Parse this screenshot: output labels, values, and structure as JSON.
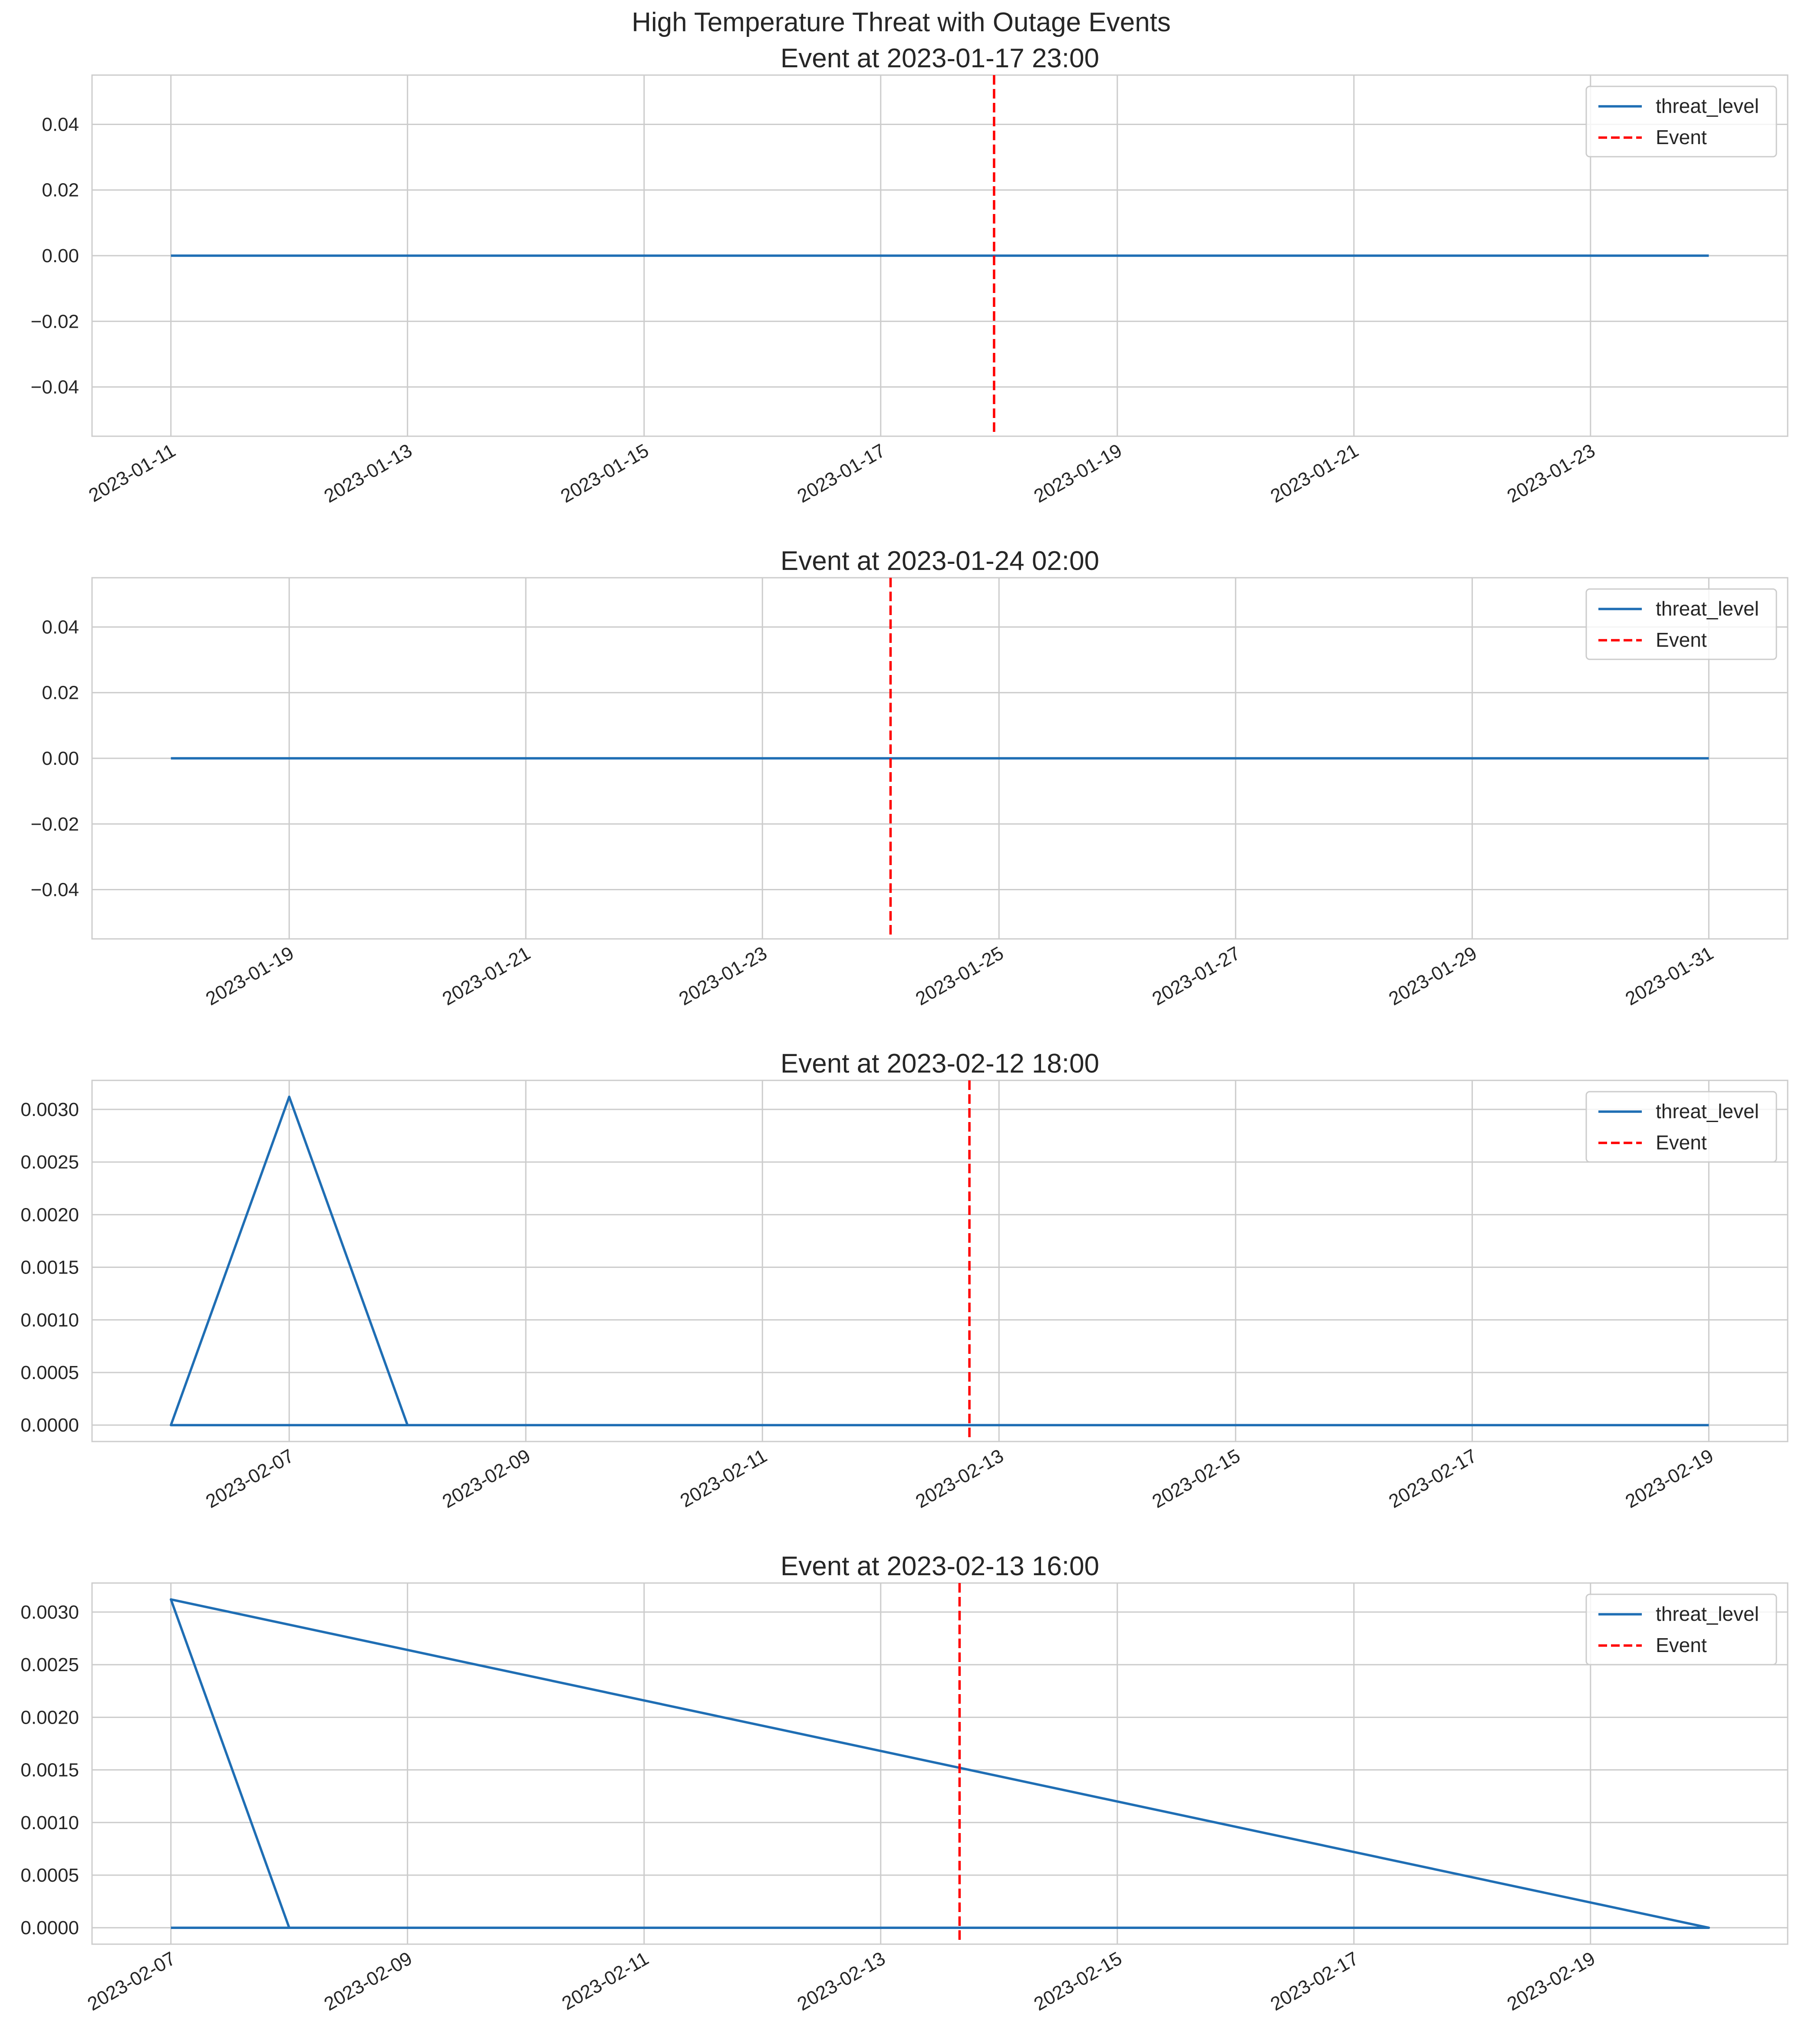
{
  "figure": {
    "suptitle": "High Temperature Threat with Outage Events",
    "colors": {
      "series": "#1f6eb4",
      "event": "#ff0000",
      "grid": "#cccccc",
      "spine": "#cccccc",
      "text": "#262626",
      "background": "#ffffff"
    }
  },
  "chart_data": [
    {
      "type": "line",
      "title": "Event at 2023-01-17 23:00",
      "xlabel": "",
      "ylabel": "",
      "x_type": "datetime",
      "xlim": [
        "2023-01-10T08:00",
        "2023-01-24T16:00"
      ],
      "ylim": [
        -0.055,
        0.055
      ],
      "xticks": [
        "2023-01-11",
        "2023-01-13",
        "2023-01-15",
        "2023-01-17",
        "2023-01-19",
        "2023-01-21",
        "2023-01-23"
      ],
      "yticks": [
        -0.04,
        -0.02,
        0.0,
        0.02,
        0.04
      ],
      "ytick_labels": [
        "−0.04",
        "−0.02",
        "0.00",
        "0.02",
        "0.04"
      ],
      "grid": true,
      "legend": {
        "position": "top-right",
        "entries": [
          "threat_level",
          "Event"
        ]
      },
      "series": [
        {
          "name": "threat_level",
          "style": "solid",
          "points": [
            [
              "2023-01-11T00:00",
              0.0
            ],
            [
              "2023-01-24T00:00",
              0.0
            ]
          ]
        }
      ],
      "event_x": "2023-01-17T23:00"
    },
    {
      "type": "line",
      "title": "Event at 2023-01-24 02:00",
      "xlabel": "",
      "ylabel": "",
      "x_type": "datetime",
      "xlim": [
        "2023-01-17T08:00",
        "2023-01-31T16:00"
      ],
      "ylim": [
        -0.055,
        0.055
      ],
      "xticks": [
        "2023-01-19",
        "2023-01-21",
        "2023-01-23",
        "2023-01-25",
        "2023-01-27",
        "2023-01-29",
        "2023-01-31"
      ],
      "yticks": [
        -0.04,
        -0.02,
        0.0,
        0.02,
        0.04
      ],
      "ytick_labels": [
        "−0.04",
        "−0.02",
        "0.00",
        "0.02",
        "0.04"
      ],
      "grid": true,
      "legend": {
        "position": "top-right",
        "entries": [
          "threat_level",
          "Event"
        ]
      },
      "series": [
        {
          "name": "threat_level",
          "style": "solid",
          "points": [
            [
              "2023-01-18T00:00",
              0.0
            ],
            [
              "2023-01-31T00:00",
              0.0
            ]
          ]
        }
      ],
      "event_x": "2023-01-24T02:00"
    },
    {
      "type": "line",
      "title": "Event at 2023-02-12 18:00",
      "xlabel": "",
      "ylabel": "",
      "x_type": "datetime",
      "xlim": [
        "2023-02-05T08:00",
        "2023-02-19T16:00"
      ],
      "ylim": [
        -0.000156,
        0.003276
      ],
      "xticks": [
        "2023-02-07",
        "2023-02-09",
        "2023-02-11",
        "2023-02-13",
        "2023-02-15",
        "2023-02-17",
        "2023-02-19"
      ],
      "yticks": [
        0.0,
        0.0005,
        0.001,
        0.0015,
        0.002,
        0.0025,
        0.003
      ],
      "ytick_labels": [
        "0.0000",
        "0.0005",
        "0.0010",
        "0.0015",
        "0.0020",
        "0.0025",
        "0.0030"
      ],
      "grid": true,
      "legend": {
        "position": "top-right",
        "entries": [
          "threat_level",
          "Event"
        ]
      },
      "series": [
        {
          "name": "threat_level",
          "style": "solid",
          "points": [
            [
              "2023-02-06T00:00",
              0.0
            ],
            [
              "2023-02-07T00:00",
              0.00312
            ],
            [
              "2023-02-08T00:00",
              0.0
            ],
            [
              "2023-02-06T00:00",
              0.0
            ],
            [
              "2023-02-19T00:00",
              0.0
            ]
          ]
        }
      ],
      "event_x": "2023-02-12T18:00"
    },
    {
      "type": "line",
      "title": "Event at 2023-02-13 16:00",
      "xlabel": "",
      "ylabel": "",
      "x_type": "datetime",
      "xlim": [
        "2023-02-06T08:00",
        "2023-02-20T16:00"
      ],
      "ylim": [
        -0.000156,
        0.003276
      ],
      "xticks": [
        "2023-02-07",
        "2023-02-09",
        "2023-02-11",
        "2023-02-13",
        "2023-02-15",
        "2023-02-17",
        "2023-02-19"
      ],
      "yticks": [
        0.0,
        0.0005,
        0.001,
        0.0015,
        0.002,
        0.0025,
        0.003
      ],
      "ytick_labels": [
        "0.0000",
        "0.0005",
        "0.0010",
        "0.0015",
        "0.0020",
        "0.0025",
        "0.0030"
      ],
      "grid": true,
      "legend": {
        "position": "top-right",
        "entries": [
          "threat_level",
          "Event"
        ]
      },
      "series": [
        {
          "name": "threat_level",
          "style": "solid",
          "points": [
            [
              "2023-02-07T00:00",
              0.0
            ],
            [
              "2023-02-20T00:00",
              0.0
            ],
            [
              "2023-02-07T00:00",
              0.00312
            ],
            [
              "2023-02-08T00:00",
              0.0
            ],
            [
              "2023-02-07T00:00",
              0.0
            ]
          ]
        }
      ],
      "event_x": "2023-02-13T16:00"
    }
  ]
}
